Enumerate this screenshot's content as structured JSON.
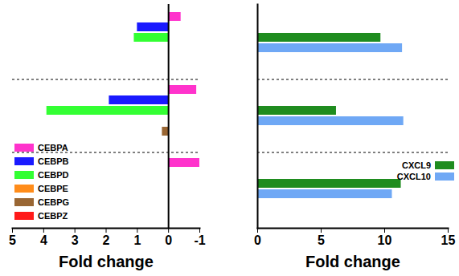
{
  "chart_data": [
    {
      "type": "bar",
      "orientation": "horizontal",
      "categories": [
        null,
        null,
        null
      ],
      "series": [
        {
          "name": "CEBPA",
          "color": "#ff33cc",
          "values": [
            -0.4,
            -0.9,
            -1.0
          ]
        },
        {
          "name": "CEBPB",
          "color": "#1a1aff",
          "values": [
            1.0,
            1.9,
            null
          ]
        },
        {
          "name": "CEBPD",
          "color": "#33ff33",
          "values": [
            1.1,
            3.9,
            null
          ]
        },
        {
          "name": "CEBPE",
          "color": "#ff8c1a",
          "values": [
            null,
            null,
            null
          ]
        },
        {
          "name": "CEBPG",
          "color": "#996633",
          "values": [
            null,
            0.2,
            null
          ]
        },
        {
          "name": "CEBPZ",
          "color": "#ff1a1a",
          "values": [
            null,
            null,
            null
          ]
        }
      ],
      "xlim": [
        5,
        -1
      ],
      "xticks": [
        5,
        4,
        3,
        2,
        1,
        0,
        -1
      ],
      "xlabel": "Fold change",
      "legend": "bottom-left"
    },
    {
      "type": "bar",
      "orientation": "horizontal",
      "categories": [
        null,
        null,
        null
      ],
      "series": [
        {
          "name": "CXCL9",
          "color": "#1f8c1f",
          "values": [
            9.7,
            6.2,
            11.3
          ]
        },
        {
          "name": "CXCL10",
          "color": "#6fa8f5",
          "values": [
            11.4,
            11.5,
            10.6
          ]
        }
      ],
      "xlim": [
        0,
        15
      ],
      "xticks": [
        0,
        5,
        10,
        15
      ],
      "xlabel": "Fold change",
      "legend": "right"
    }
  ]
}
